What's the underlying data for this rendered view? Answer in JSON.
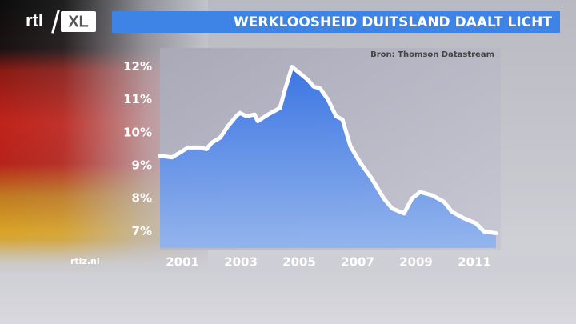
{
  "logo": [
    "rtl",
    "XL"
  ],
  "website": "rtlz.nl",
  "chart_data": {
    "type": "area",
    "title": "WERKLOOSHEID DUITSLAND DAALT LICHT",
    "source": "Bron: Thomson Datastream",
    "x": [
      2000.23,
      2000.64,
      2000.92,
      2001.19,
      2001.6,
      2001.82,
      2002.01,
      2002.29,
      2002.56,
      2002.84,
      2002.97,
      2003.19,
      2003.47,
      2003.58,
      2003.93,
      2004.34,
      2004.51,
      2004.75,
      2005.03,
      2005.3,
      2005.49,
      2005.71,
      2005.99,
      2006.26,
      2006.48,
      2006.75,
      2007.08,
      2007.49,
      2007.9,
      2008.18,
      2008.59,
      2008.86,
      2009.14,
      2009.55,
      2009.96,
      2010.23,
      2010.64,
      2011.05,
      2011.33,
      2011.74
    ],
    "values": [
      9.3,
      9.25,
      9.4,
      9.55,
      9.55,
      9.5,
      9.7,
      9.85,
      10.2,
      10.5,
      10.6,
      10.5,
      10.55,
      10.35,
      10.55,
      10.75,
      11.3,
      12.0,
      11.8,
      11.6,
      11.4,
      11.35,
      11.0,
      10.5,
      10.4,
      9.6,
      9.1,
      8.6,
      8.0,
      7.7,
      7.55,
      8.0,
      8.2,
      8.1,
      7.9,
      7.6,
      7.4,
      7.25,
      7.0,
      6.95
    ],
    "color": "#ffffff",
    "fill": "#4a86e8",
    "xlim": [
      2000.23,
      2011.85
    ],
    "ylim": [
      6.5,
      12.45
    ],
    "xticks": [
      2001,
      2003,
      2005,
      2007,
      2009,
      2011
    ],
    "yticks": [
      {
        "value": 12,
        "label": "12%"
      },
      {
        "value": 11,
        "label": "11%"
      },
      {
        "value": 10,
        "label": "10%"
      },
      {
        "value": 9,
        "label": "9%"
      },
      {
        "value": 8,
        "label": "8%"
      },
      {
        "value": 7,
        "label": "7%"
      }
    ]
  }
}
